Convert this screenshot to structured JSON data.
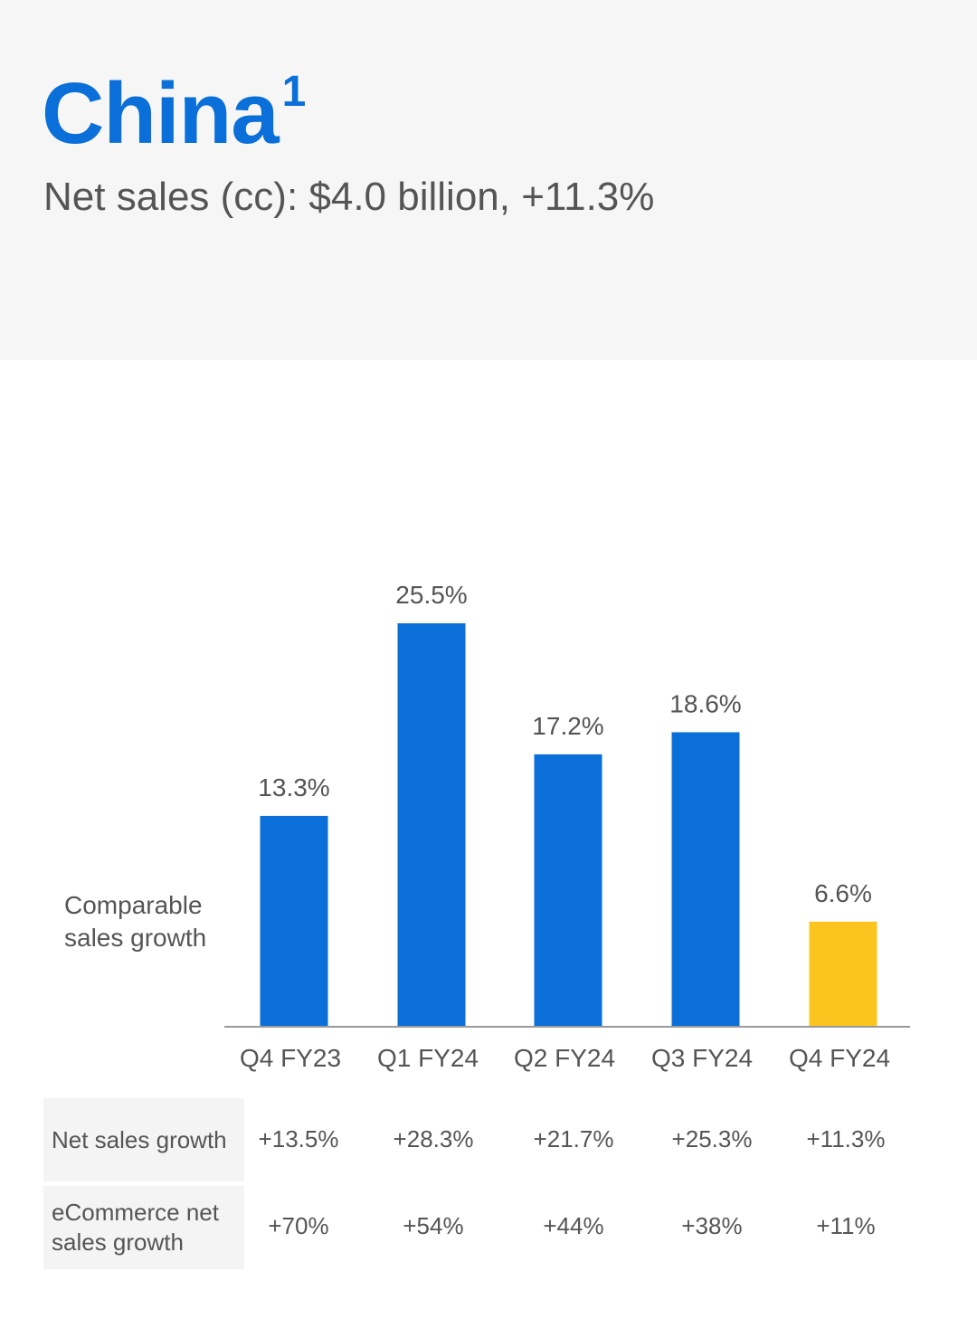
{
  "header": {
    "title": "China",
    "footnote": "1",
    "subtitle": "Net sales (cc): $4.0 billion, +11.3%"
  },
  "colors": {
    "primary_bar": "#0a6fd8",
    "highlight_bar": "#fcc41f",
    "title": "#0a6fd8"
  },
  "chart_data": {
    "type": "bar",
    "ylabel_lines": [
      "Comparable",
      "sales growth"
    ],
    "categories": [
      "Q4 FY23",
      "Q1 FY24",
      "Q2 FY24",
      "Q3 FY24",
      "Q4 FY24"
    ],
    "values": [
      13.3,
      25.5,
      17.2,
      18.6,
      6.6
    ],
    "value_labels": [
      "13.3%",
      "25.5%",
      "17.2%",
      "18.6%",
      "6.6%"
    ],
    "highlight_index": 4,
    "ylim": [
      0,
      30
    ],
    "grid": false
  },
  "table": {
    "rows": [
      {
        "label": "Net sales growth",
        "values": [
          "+13.5%",
          "+28.3%",
          "+21.7%",
          "+25.3%",
          "+11.3%"
        ]
      },
      {
        "label": "eCommerce net sales growth",
        "values": [
          "+70%",
          "+54%",
          "+44%",
          "+38%",
          "+11%"
        ]
      }
    ]
  }
}
